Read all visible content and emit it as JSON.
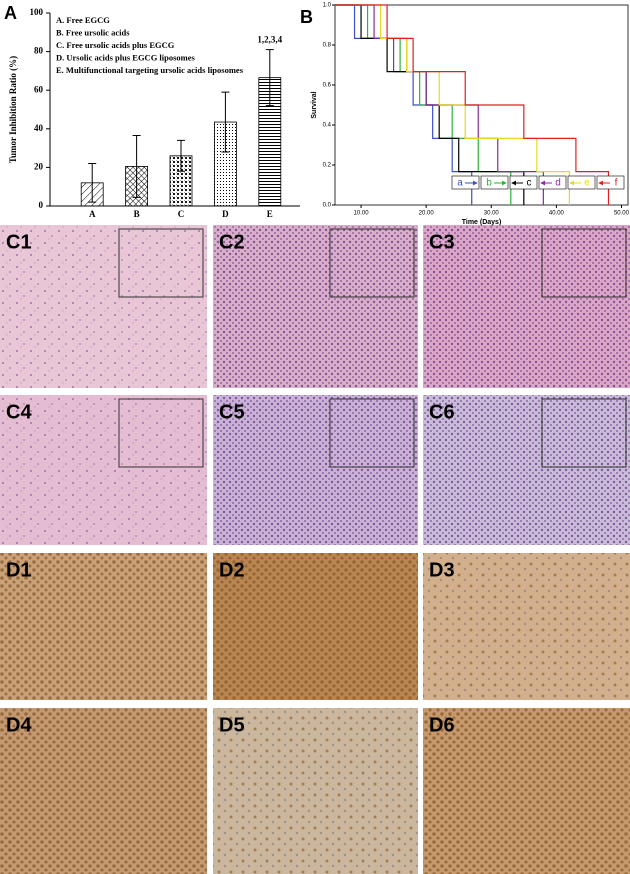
{
  "chart_data": [
    {
      "type": "bar",
      "panel": "A",
      "y_label": "Tumor Inhibition Ratio (%)",
      "categories": [
        "A",
        "B",
        "C",
        "D",
        "E"
      ],
      "values": [
        12,
        20.5,
        26,
        43.5,
        66.5
      ],
      "errors": [
        10,
        16,
        8,
        15.5,
        14.5
      ],
      "color": "#000000",
      "ylim": [
        0,
        100
      ],
      "yticks": [
        0,
        20,
        40,
        60,
        80,
        100
      ],
      "legend": [
        "A. Free EGCG",
        "B. Free ursolic acids",
        "C. Free ursolic acids plus EGCG",
        "D. Ursolic acids plus EGCG liposomes",
        "E. Multifunctional targeting ursolic acids liposomes"
      ],
      "annotation": "1,2,3,4"
    },
    {
      "type": "step",
      "panel": "B",
      "x_label": "Time (Days)",
      "y_label": "Survival",
      "xlim": [
        6,
        51
      ],
      "ylim": [
        0,
        1
      ],
      "xticks": [
        {
          "value": 10,
          "label": "10.00"
        },
        {
          "value": 20,
          "label": "20.00"
        },
        {
          "value": 30,
          "label": "30.00"
        },
        {
          "value": 40,
          "label": "40.00"
        },
        {
          "value": 50,
          "label": "50.00"
        }
      ],
      "yticks": [
        {
          "value": 0,
          "label": "0.0"
        },
        {
          "value": 0.2,
          "label": "0.2"
        },
        {
          "value": 0.4,
          "label": "0.4"
        },
        {
          "value": 0.6,
          "label": "0.6"
        },
        {
          "value": 0.8,
          "label": "0.8"
        },
        {
          "value": 1,
          "label": "1.0"
        }
      ],
      "series": [
        {
          "name": "a",
          "color": "#3a52c4",
          "x": [
            9,
            15,
            18,
            21,
            24,
            27
          ],
          "values": [
            0.833,
            0.667,
            0.5,
            0.333,
            0.167,
            0
          ]
        },
        {
          "name": "b",
          "color": "#2db23a",
          "x": [
            11,
            16,
            19,
            24,
            28,
            33
          ],
          "values": [
            0.833,
            0.667,
            0.5,
            0.333,
            0.167,
            0
          ]
        },
        {
          "name": "c",
          "color": "#000000",
          "x": [
            10,
            14,
            20,
            22,
            25,
            35
          ],
          "values": [
            0.833,
            0.667,
            0.5,
            0.333,
            0.167,
            0
          ]
        },
        {
          "name": "d",
          "color": "#8a2aa0",
          "x": [
            12,
            17,
            20,
            28,
            31,
            38
          ],
          "values": [
            0.833,
            0.667,
            0.5,
            0.333,
            0.167,
            0
          ]
        },
        {
          "name": "e",
          "color": "#e8d820",
          "x": [
            13,
            17,
            22,
            26,
            37,
            42
          ],
          "values": [
            0.833,
            0.667,
            0.5,
            0.333,
            0.167,
            0
          ]
        },
        {
          "name": "f",
          "color": "#e02020",
          "x": [
            14,
            18,
            26,
            35,
            43,
            48
          ],
          "values": [
            0.833,
            0.667,
            0.5,
            0.333,
            0.167,
            0
          ]
        }
      ]
    }
  ],
  "panels": [
    "C1",
    "C2",
    "C3",
    "C4",
    "C5",
    "C6",
    "D1",
    "D2",
    "D3",
    "D4",
    "D5",
    "D6"
  ]
}
